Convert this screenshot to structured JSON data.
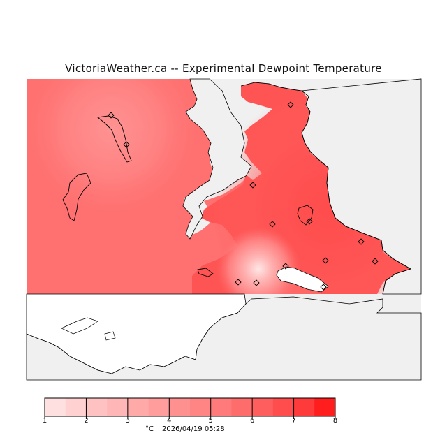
{
  "title": "VictoriaWeather.ca -- Experimental Dewpoint Temperature",
  "legend": {
    "ticks": [
      "1",
      "2",
      "3",
      "4",
      "5",
      "6",
      "7",
      "8"
    ],
    "unit": "°C",
    "timestamp": "2026/04/19 05:28",
    "colors": [
      "#ffe0e0",
      "#ffc2c2",
      "#ffa9a9",
      "#ff9090",
      "#ff7a7a",
      "#ff5e5e",
      "#ff3a3a",
      "#ff0000"
    ]
  },
  "map": {
    "land_gray": "#f0f0f0",
    "water_white": "#ffffff",
    "field_base": "#ff6f6f",
    "field_warm": "#ff4e4e",
    "field_cool": "#ff8c8c",
    "field_coolest": "#ffd8d8"
  }
}
